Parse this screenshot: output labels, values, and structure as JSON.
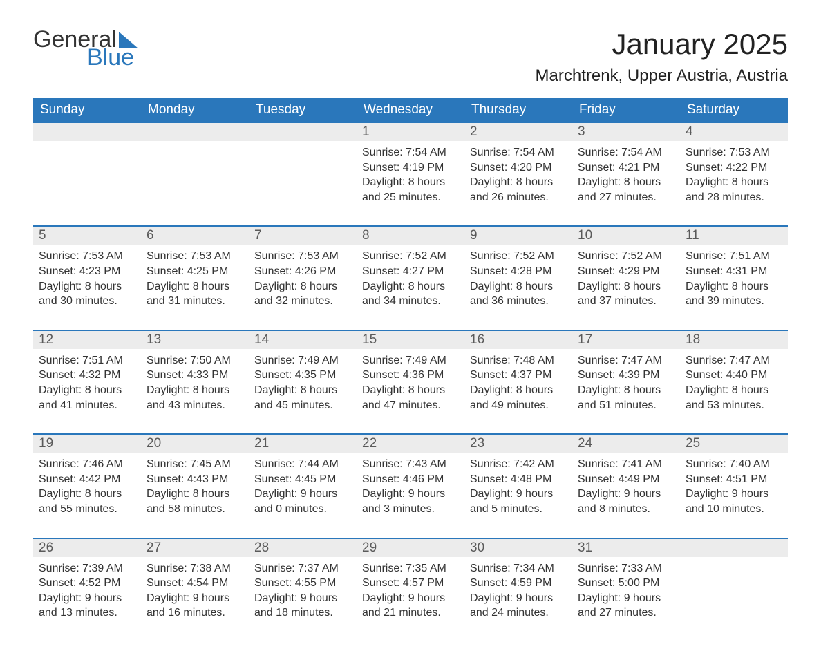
{
  "logo": {
    "word1": "General",
    "word2": "Blue"
  },
  "title": "January 2025",
  "location": "Marchtrenk, Upper Austria, Austria",
  "colors": {
    "header_bg": "#2a77bb",
    "header_text": "#ffffff",
    "daynum_bg": "#ececec",
    "daynum_text": "#5a5a5a",
    "body_text": "#333333",
    "rule": "#2a77bb",
    "page_bg": "#ffffff"
  },
  "typography": {
    "title_fontsize": 42,
    "location_fontsize": 24,
    "dow_fontsize": 19,
    "daynum_fontsize": 19,
    "body_fontsize": 16
  },
  "days_of_week": [
    "Sunday",
    "Monday",
    "Tuesday",
    "Wednesday",
    "Thursday",
    "Friday",
    "Saturday"
  ],
  "weeks": [
    [
      null,
      null,
      null,
      {
        "n": "1",
        "sunrise": "Sunrise: 7:54 AM",
        "sunset": "Sunset: 4:19 PM",
        "daylight": "Daylight: 8 hours and 25 minutes."
      },
      {
        "n": "2",
        "sunrise": "Sunrise: 7:54 AM",
        "sunset": "Sunset: 4:20 PM",
        "daylight": "Daylight: 8 hours and 26 minutes."
      },
      {
        "n": "3",
        "sunrise": "Sunrise: 7:54 AM",
        "sunset": "Sunset: 4:21 PM",
        "daylight": "Daylight: 8 hours and 27 minutes."
      },
      {
        "n": "4",
        "sunrise": "Sunrise: 7:53 AM",
        "sunset": "Sunset: 4:22 PM",
        "daylight": "Daylight: 8 hours and 28 minutes."
      }
    ],
    [
      {
        "n": "5",
        "sunrise": "Sunrise: 7:53 AM",
        "sunset": "Sunset: 4:23 PM",
        "daylight": "Daylight: 8 hours and 30 minutes."
      },
      {
        "n": "6",
        "sunrise": "Sunrise: 7:53 AM",
        "sunset": "Sunset: 4:25 PM",
        "daylight": "Daylight: 8 hours and 31 minutes."
      },
      {
        "n": "7",
        "sunrise": "Sunrise: 7:53 AM",
        "sunset": "Sunset: 4:26 PM",
        "daylight": "Daylight: 8 hours and 32 minutes."
      },
      {
        "n": "8",
        "sunrise": "Sunrise: 7:52 AM",
        "sunset": "Sunset: 4:27 PM",
        "daylight": "Daylight: 8 hours and 34 minutes."
      },
      {
        "n": "9",
        "sunrise": "Sunrise: 7:52 AM",
        "sunset": "Sunset: 4:28 PM",
        "daylight": "Daylight: 8 hours and 36 minutes."
      },
      {
        "n": "10",
        "sunrise": "Sunrise: 7:52 AM",
        "sunset": "Sunset: 4:29 PM",
        "daylight": "Daylight: 8 hours and 37 minutes."
      },
      {
        "n": "11",
        "sunrise": "Sunrise: 7:51 AM",
        "sunset": "Sunset: 4:31 PM",
        "daylight": "Daylight: 8 hours and 39 minutes."
      }
    ],
    [
      {
        "n": "12",
        "sunrise": "Sunrise: 7:51 AM",
        "sunset": "Sunset: 4:32 PM",
        "daylight": "Daylight: 8 hours and 41 minutes."
      },
      {
        "n": "13",
        "sunrise": "Sunrise: 7:50 AM",
        "sunset": "Sunset: 4:33 PM",
        "daylight": "Daylight: 8 hours and 43 minutes."
      },
      {
        "n": "14",
        "sunrise": "Sunrise: 7:49 AM",
        "sunset": "Sunset: 4:35 PM",
        "daylight": "Daylight: 8 hours and 45 minutes."
      },
      {
        "n": "15",
        "sunrise": "Sunrise: 7:49 AM",
        "sunset": "Sunset: 4:36 PM",
        "daylight": "Daylight: 8 hours and 47 minutes."
      },
      {
        "n": "16",
        "sunrise": "Sunrise: 7:48 AM",
        "sunset": "Sunset: 4:37 PM",
        "daylight": "Daylight: 8 hours and 49 minutes."
      },
      {
        "n": "17",
        "sunrise": "Sunrise: 7:47 AM",
        "sunset": "Sunset: 4:39 PM",
        "daylight": "Daylight: 8 hours and 51 minutes."
      },
      {
        "n": "18",
        "sunrise": "Sunrise: 7:47 AM",
        "sunset": "Sunset: 4:40 PM",
        "daylight": "Daylight: 8 hours and 53 minutes."
      }
    ],
    [
      {
        "n": "19",
        "sunrise": "Sunrise: 7:46 AM",
        "sunset": "Sunset: 4:42 PM",
        "daylight": "Daylight: 8 hours and 55 minutes."
      },
      {
        "n": "20",
        "sunrise": "Sunrise: 7:45 AM",
        "sunset": "Sunset: 4:43 PM",
        "daylight": "Daylight: 8 hours and 58 minutes."
      },
      {
        "n": "21",
        "sunrise": "Sunrise: 7:44 AM",
        "sunset": "Sunset: 4:45 PM",
        "daylight": "Daylight: 9 hours and 0 minutes."
      },
      {
        "n": "22",
        "sunrise": "Sunrise: 7:43 AM",
        "sunset": "Sunset: 4:46 PM",
        "daylight": "Daylight: 9 hours and 3 minutes."
      },
      {
        "n": "23",
        "sunrise": "Sunrise: 7:42 AM",
        "sunset": "Sunset: 4:48 PM",
        "daylight": "Daylight: 9 hours and 5 minutes."
      },
      {
        "n": "24",
        "sunrise": "Sunrise: 7:41 AM",
        "sunset": "Sunset: 4:49 PM",
        "daylight": "Daylight: 9 hours and 8 minutes."
      },
      {
        "n": "25",
        "sunrise": "Sunrise: 7:40 AM",
        "sunset": "Sunset: 4:51 PM",
        "daylight": "Daylight: 9 hours and 10 minutes."
      }
    ],
    [
      {
        "n": "26",
        "sunrise": "Sunrise: 7:39 AM",
        "sunset": "Sunset: 4:52 PM",
        "daylight": "Daylight: 9 hours and 13 minutes."
      },
      {
        "n": "27",
        "sunrise": "Sunrise: 7:38 AM",
        "sunset": "Sunset: 4:54 PM",
        "daylight": "Daylight: 9 hours and 16 minutes."
      },
      {
        "n": "28",
        "sunrise": "Sunrise: 7:37 AM",
        "sunset": "Sunset: 4:55 PM",
        "daylight": "Daylight: 9 hours and 18 minutes."
      },
      {
        "n": "29",
        "sunrise": "Sunrise: 7:35 AM",
        "sunset": "Sunset: 4:57 PM",
        "daylight": "Daylight: 9 hours and 21 minutes."
      },
      {
        "n": "30",
        "sunrise": "Sunrise: 7:34 AM",
        "sunset": "Sunset: 4:59 PM",
        "daylight": "Daylight: 9 hours and 24 minutes."
      },
      {
        "n": "31",
        "sunrise": "Sunrise: 7:33 AM",
        "sunset": "Sunset: 5:00 PM",
        "daylight": "Daylight: 9 hours and 27 minutes."
      },
      null
    ]
  ]
}
